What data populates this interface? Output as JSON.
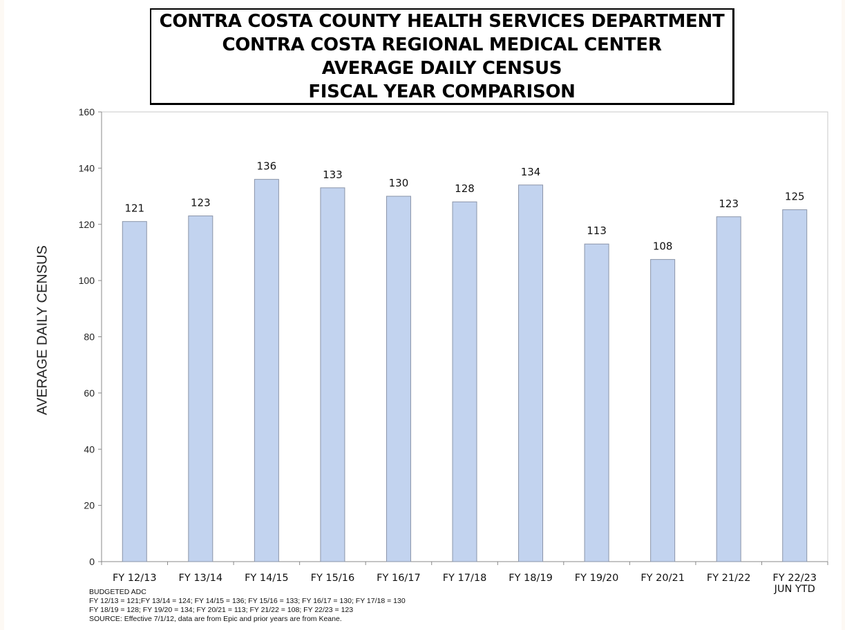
{
  "title_lines": [
    "CONTRA COSTA COUNTY HEALTH SERVICES DEPARTMENT",
    "CONTRA COSTA REGIONAL MEDICAL CENTER",
    "AVERAGE DAILY CENSUS",
    "FISCAL YEAR COMPARISON"
  ],
  "chart_data": {
    "type": "bar",
    "title": "CONTRA COSTA COUNTY HEALTH SERVICES DEPARTMENT / CONTRA COSTA REGIONAL MEDICAL CENTER / AVERAGE DAILY CENSUS / FISCAL YEAR COMPARISON",
    "xlabel": "",
    "ylabel": "AVERAGE DAILY CENSUS",
    "categories": [
      "FY 12/13",
      "FY 13/14",
      "FY 14/15",
      "FY 15/16",
      "FY 16/17",
      "FY 17/18",
      "FY 18/19",
      "FY 19/20",
      "FY 20/21",
      "FY 21/22",
      "FY 22/23\nJUN YTD"
    ],
    "values": [
      121,
      123,
      136,
      133,
      130,
      128,
      134,
      113,
      107.5,
      122.7,
      125.2
    ],
    "data_labels": [
      "121",
      "123",
      "136",
      "133",
      "130",
      "128",
      "134",
      "113",
      "108",
      "123",
      "125"
    ],
    "ylim": [
      0,
      160
    ],
    "yticks": [
      0,
      20,
      40,
      60,
      80,
      100,
      120,
      140,
      160
    ],
    "grid": false,
    "legend": "none",
    "bar_color": "#c2d3ef",
    "bar_edge_color": "#8a94a8"
  },
  "footnote": {
    "heading": "BUDGETED ADC",
    "lines": [
      "FY 12/13 = 121;FY 13/14 = 124; FY 14/15 = 136; FY 15/16 = 133; FY 16/17 = 130; FY 17/18 = 130",
      "FY 18/19 = 128; FY 19/20 = 134; FY 20/21 = 113; FY 21/22 = 108; FY 22/23 = 123",
      "SOURCE: Effective 7/1/12, data are from Epic and prior years are from Keane."
    ]
  }
}
